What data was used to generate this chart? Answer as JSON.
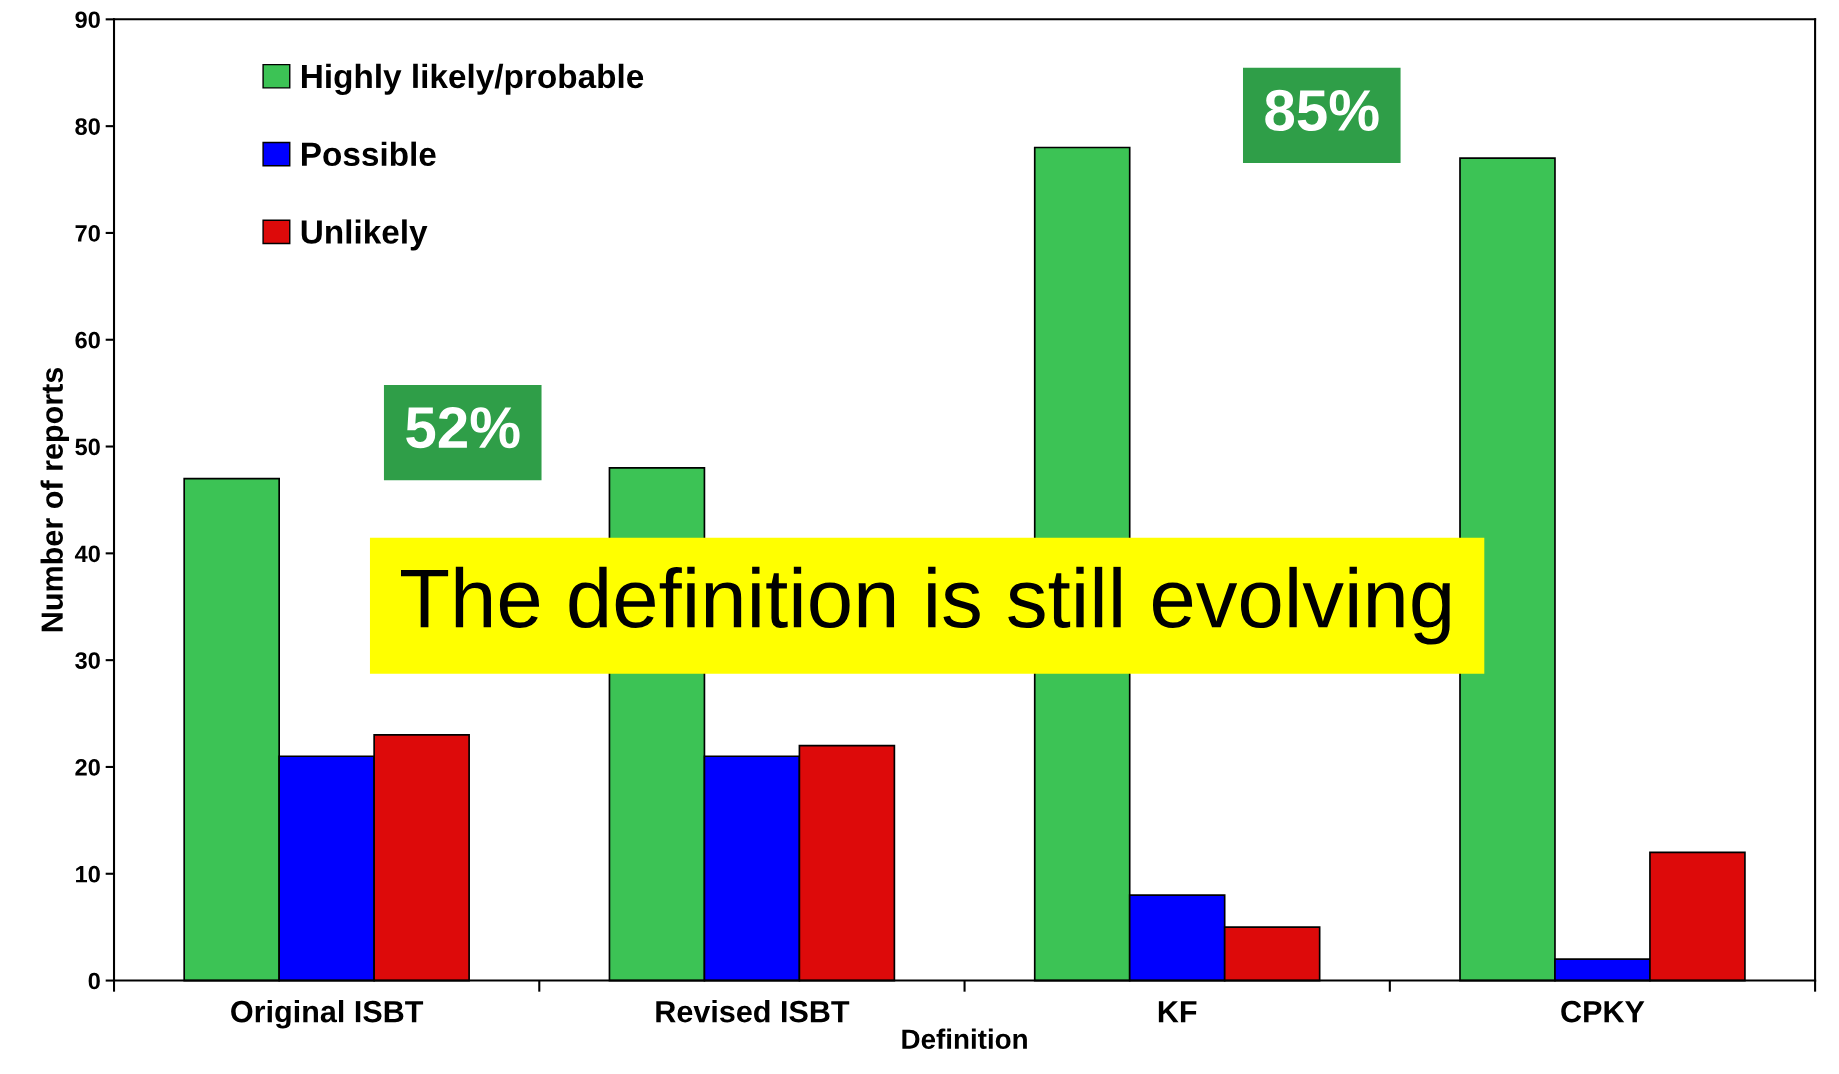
{
  "chart_data": {
    "type": "bar",
    "xlabel": "Definition",
    "ylabel": "Number of reports",
    "categories": [
      "Original ISBT",
      "Revised ISBT",
      "KF",
      "CPKY"
    ],
    "series": [
      {
        "name": "Highly likely/probable",
        "color": "#3cc355",
        "values": [
          47,
          48,
          78,
          77
        ]
      },
      {
        "name": "Possible",
        "color": "#0000ff",
        "values": [
          21,
          21,
          8,
          2
        ]
      },
      {
        "name": "Unlikely",
        "color": "#dd0a0a",
        "values": [
          23,
          22,
          5,
          12
        ]
      }
    ],
    "ylim": [
      0,
      90
    ],
    "yticks": [
      0,
      10,
      20,
      30,
      40,
      50,
      60,
      70,
      80,
      90
    ],
    "grid": false,
    "legend": "top left",
    "annotations": [
      "52%",
      "85%",
      "The definition is still evolving"
    ]
  }
}
